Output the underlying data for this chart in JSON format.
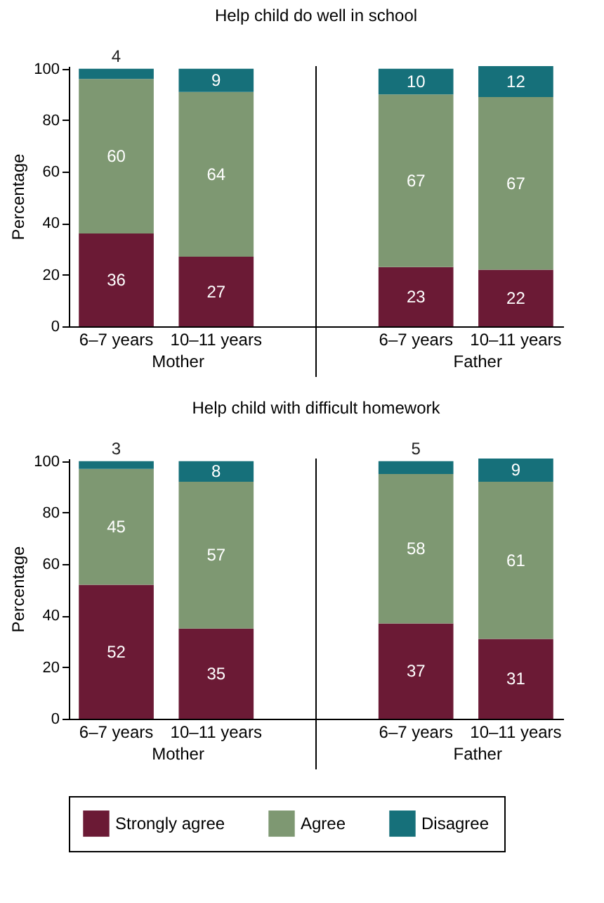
{
  "chart_data": [
    {
      "type": "bar",
      "title": "Help child do well in school",
      "ylabel": "Percentage",
      "categories": [
        "6–7 years",
        "10–11 years",
        "6–7 years",
        "10–11 years"
      ],
      "annotations": [
        "Mother",
        "Father"
      ],
      "stacked": true,
      "ylim": [
        0,
        101
      ],
      "yticks": [
        0,
        20,
        40,
        60,
        80,
        100
      ],
      "grid": false,
      "legend": "bottom",
      "data_labels": true,
      "series": [
        {
          "name": "Strongly agree",
          "color": "#6b1a35",
          "values": [
            36,
            27,
            23,
            22
          ]
        },
        {
          "name": "Agree",
          "color": "#7e9872",
          "values": [
            60,
            64,
            67,
            67
          ]
        },
        {
          "name": "Disagree",
          "color": "#16707a",
          "values": [
            4,
            9,
            10,
            12
          ]
        }
      ]
    },
    {
      "type": "bar",
      "title": "Help child with difficult homework",
      "ylabel": "Percentage",
      "categories": [
        "6–7 years",
        "10–11 years",
        "6–7 years",
        "10–11 years"
      ],
      "annotations": [
        "Mother",
        "Father"
      ],
      "stacked": true,
      "ylim": [
        0,
        101
      ],
      "yticks": [
        0,
        20,
        40,
        60,
        80,
        100
      ],
      "grid": false,
      "legend": "bottom",
      "data_labels": true,
      "series": [
        {
          "name": "Strongly agree",
          "color": "#6b1a35",
          "values": [
            52,
            35,
            37,
            31
          ]
        },
        {
          "name": "Agree",
          "color": "#7e9872",
          "values": [
            45,
            57,
            58,
            61
          ]
        },
        {
          "name": "Disagree",
          "color": "#16707a",
          "values": [
            3,
            8,
            5,
            9
          ]
        }
      ]
    }
  ]
}
